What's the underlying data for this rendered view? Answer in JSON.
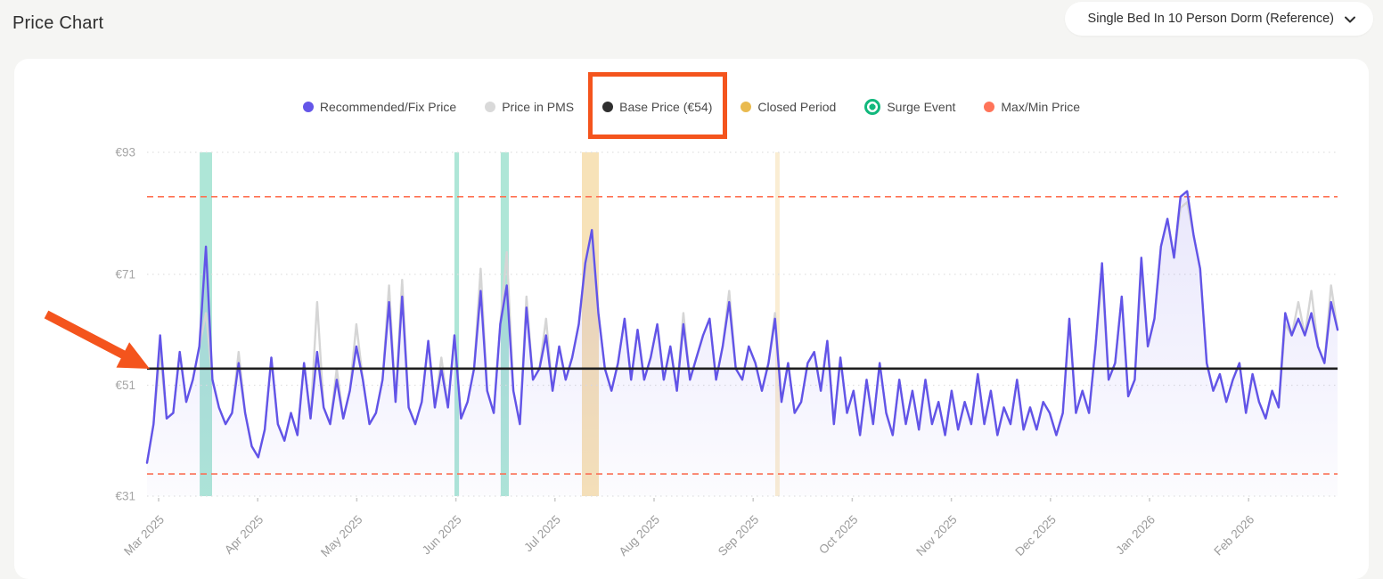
{
  "page": {
    "title": "Price Chart",
    "background": "#F5F5F3"
  },
  "selector": {
    "value": "Single Bed In 10 Person Dorm (Reference)",
    "icon": "chevron-down"
  },
  "legend": {
    "items": [
      {
        "id": "recommended-fix-price",
        "label": "Recommended/Fix Price",
        "color": "#6456E8",
        "shape": "dot"
      },
      {
        "id": "price-in-pms",
        "label": "Price in PMS",
        "color": "#D9D9D9",
        "shape": "dot"
      },
      {
        "id": "base-price",
        "label": "Base Price (€54)",
        "color": "#2F2F2F",
        "shape": "dot",
        "highlighted": true
      },
      {
        "id": "closed-period",
        "label": "Closed Period",
        "color": "#E9BA4F",
        "shape": "dot"
      },
      {
        "id": "surge-event",
        "label": "Surge Event",
        "color": "#12B87D",
        "shape": "donut"
      },
      {
        "id": "max-min-price",
        "label": "Max/Min Price",
        "color": "#FF7459",
        "shape": "dot"
      }
    ]
  },
  "annotations": {
    "highlight_box_target": "Base Price (€54)",
    "highlight_box_color": "#F4541D",
    "arrow_color": "#F4541D",
    "arrow_points_at": "base price line"
  },
  "chart_data": {
    "type": "line",
    "unit": "EUR",
    "y_range": [
      31,
      93
    ],
    "y_ticks": [
      {
        "label": "€93",
        "value": 93
      },
      {
        "label": "€71",
        "value": 71
      },
      {
        "label": "€51",
        "value": 51
      },
      {
        "label": "€31",
        "value": 31
      }
    ],
    "x_labels": [
      "Mar 2025",
      "Apr 2025",
      "May 2025",
      "Jun 2025",
      "Jul 2025",
      "Aug 2025",
      "Sep 2025",
      "Oct 2025",
      "Nov 2025",
      "Dec 2025",
      "Jan 2026",
      "Feb 2026"
    ],
    "base_price": {
      "value": 54,
      "color": "#1F1F1F"
    },
    "max_price": {
      "value": 85
    },
    "min_price": {
      "value": 35
    },
    "maxmin_line_color": "#FF7152",
    "grid_color": "#E0E0E0",
    "band_colors": {
      "surge": "#5ECDB0",
      "closed": "#EDBE62"
    },
    "bands": [
      {
        "kind": "surge",
        "from": 0.0442,
        "to": 0.0546
      },
      {
        "kind": "surge",
        "from": 0.2582,
        "to": 0.262
      },
      {
        "kind": "surge",
        "from": 0.2971,
        "to": 0.3039
      },
      {
        "kind": "closed",
        "from": 0.3653,
        "to": 0.3795,
        "opacity": 0.45
      },
      {
        "kind": "closed",
        "from": 0.5277,
        "to": 0.5314,
        "opacity": 0.28
      }
    ],
    "series": [
      {
        "name": "Recommended/Fix Price",
        "color": "#6254E8",
        "values": [
          37,
          44,
          60,
          45,
          46,
          57,
          48,
          52,
          58,
          76,
          52,
          47,
          44,
          46,
          55,
          46,
          40,
          38,
          43,
          56,
          44,
          41,
          46,
          42,
          55,
          45,
          57,
          47,
          44,
          52,
          45,
          50,
          58,
          52,
          44,
          46,
          52,
          66,
          48,
          67,
          47,
          44,
          48,
          59,
          47,
          54,
          47,
          60,
          45,
          48,
          54,
          68,
          50,
          46,
          62,
          69,
          50,
          44,
          65,
          52,
          54,
          60,
          50,
          58,
          52,
          56,
          62,
          73,
          79,
          64,
          54,
          50,
          55,
          63,
          52,
          61,
          52,
          56,
          62,
          52,
          58,
          50,
          62,
          52,
          56,
          60,
          63,
          52,
          58,
          66,
          54,
          52,
          58,
          55,
          50,
          55,
          63,
          48,
          55,
          46,
          48,
          55,
          57,
          50,
          59,
          44,
          56,
          46,
          50,
          42,
          52,
          44,
          55,
          46,
          42,
          52,
          44,
          50,
          43,
          52,
          44,
          48,
          42,
          50,
          43,
          48,
          44,
          53,
          44,
          50,
          42,
          47,
          44,
          52,
          43,
          47,
          43,
          48,
          46,
          42,
          46,
          63,
          46,
          50,
          46,
          58,
          73,
          52,
          55,
          67,
          49,
          52,
          74,
          58,
          63,
          76,
          81,
          74,
          85,
          86,
          78,
          72,
          55,
          50,
          53,
          48,
          52,
          55,
          46,
          53,
          48,
          45,
          50,
          47,
          64,
          60,
          63,
          60,
          64,
          58,
          55,
          66,
          61
        ]
      },
      {
        "name": "Price in PMS",
        "color": "#D5D5D5",
        "values": [
          37,
          44,
          57,
          45,
          46,
          57,
          48,
          52,
          58,
          64,
          52,
          47,
          44,
          46,
          57,
          46,
          40,
          38,
          43,
          56,
          44,
          41,
          46,
          42,
          55,
          45,
          66,
          47,
          44,
          54,
          45,
          50,
          62,
          52,
          44,
          46,
          52,
          69,
          48,
          70,
          47,
          44,
          48,
          59,
          47,
          56,
          47,
          60,
          45,
          48,
          54,
          72,
          50,
          46,
          62,
          75,
          50,
          44,
          67,
          52,
          54,
          63,
          50,
          58,
          52,
          56,
          62,
          73,
          77,
          64,
          54,
          50,
          55,
          63,
          52,
          61,
          52,
          56,
          62,
          52,
          58,
          50,
          64,
          52,
          56,
          60,
          63,
          52,
          58,
          68,
          54,
          52,
          58,
          55,
          50,
          55,
          64,
          48,
          55,
          46,
          48,
          55,
          57,
          50,
          59,
          44,
          56,
          46,
          50,
          42,
          52,
          44,
          55,
          46,
          42,
          52,
          44,
          50,
          43,
          52,
          44,
          48,
          42,
          50,
          43,
          48,
          44,
          53,
          44,
          50,
          42,
          47,
          44,
          52,
          43,
          47,
          43,
          48,
          46,
          42,
          46,
          63,
          46,
          50,
          46,
          58,
          71,
          52,
          55,
          67,
          49,
          52,
          72,
          58,
          63,
          76,
          81,
          74,
          83,
          84,
          78,
          72,
          55,
          50,
          53,
          48,
          52,
          55,
          46,
          53,
          48,
          45,
          50,
          47,
          62,
          60,
          66,
          60,
          68,
          58,
          55,
          69,
          61
        ]
      }
    ]
  }
}
